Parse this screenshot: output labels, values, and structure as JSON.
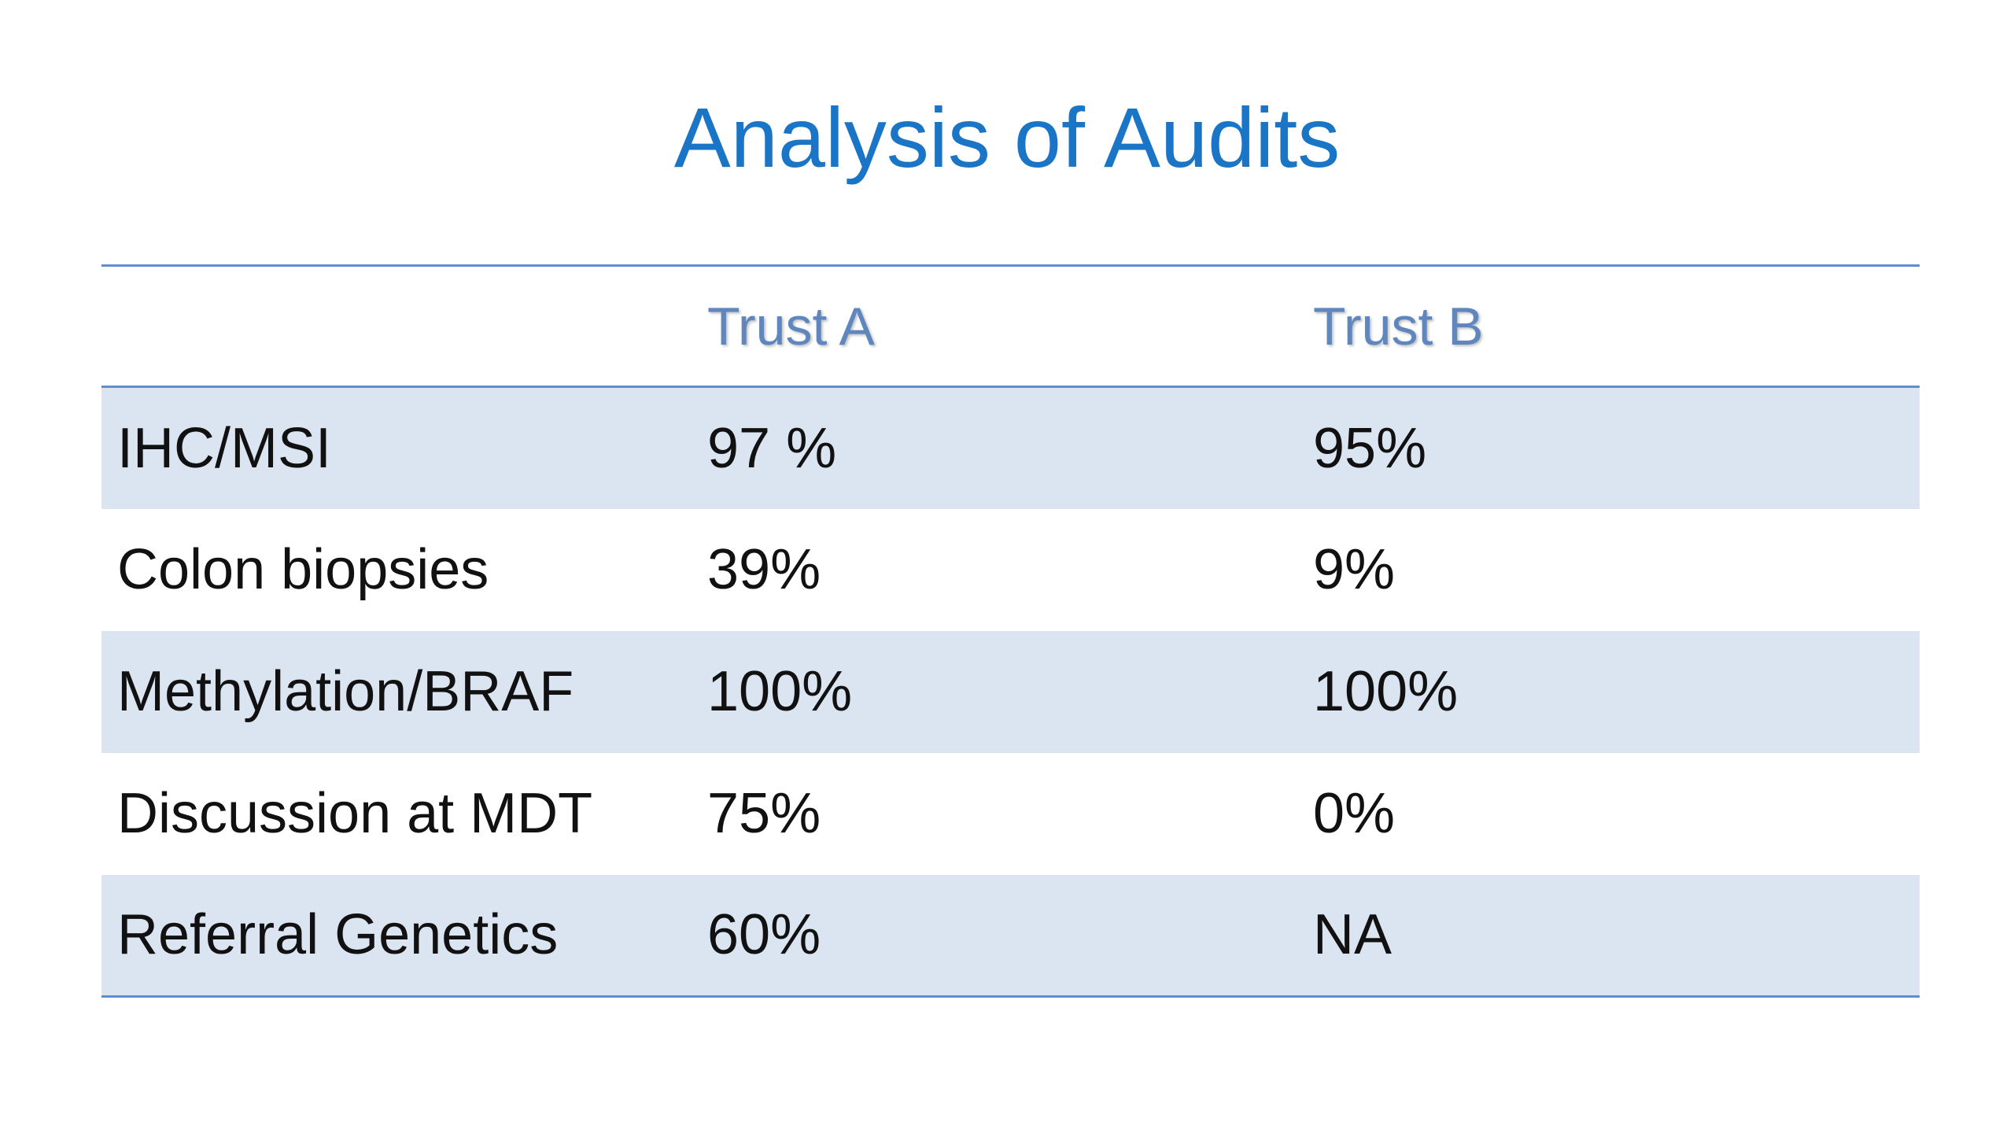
{
  "slide": {
    "title": "Analysis of Audits"
  },
  "table": {
    "headers": [
      "",
      "Trust A",
      "Trust B"
    ],
    "rows": [
      {
        "label": "IHC/MSI",
        "trust_a": "97 %",
        "trust_b": "95%"
      },
      {
        "label": "Colon biopsies",
        "trust_a": "39%",
        "trust_b": "9%"
      },
      {
        "label": "Methylation/BRAF",
        "trust_a": "100%",
        "trust_b": "100%"
      },
      {
        "label": "Discussion at MDT",
        "trust_a": "75%",
        "trust_b": "0%"
      },
      {
        "label": "Referral Genetics",
        "trust_a": "60%",
        "trust_b": "NA"
      }
    ]
  },
  "colors": {
    "title": "#1a75c6",
    "header_text": "#5f86bd",
    "rule": "#5b8fd0",
    "band": "#dbe4f1"
  }
}
